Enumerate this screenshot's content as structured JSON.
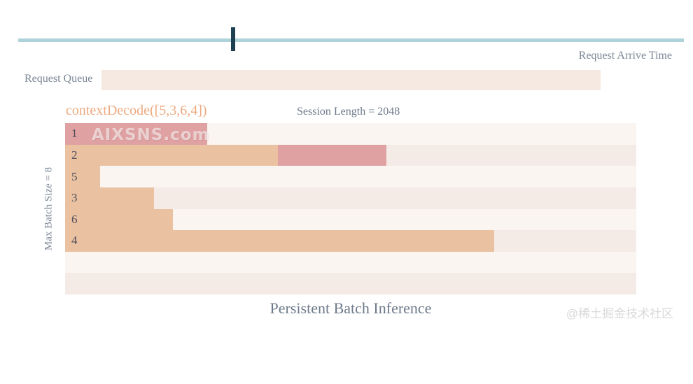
{
  "colors": {
    "tan": "#EAC2A2",
    "rose": "#DFA1A2",
    "row_even": "#FAF5F0",
    "row_odd": "#F5EBE6",
    "queue_bar": "#F5E9E1",
    "timeline": "#AED3DB",
    "tick": "#1D4150",
    "label_text": "#7B8695",
    "context_text": "#ECAA80",
    "row_label_text": "#504C59",
    "title_text": "#6E7A8A",
    "watermark_text": "#D9D9D9"
  },
  "timeline": {
    "arrive_label": "Request Arrive Time",
    "tick_position_pct": 32
  },
  "request_queue": {
    "label": "Request Queue"
  },
  "chart": {
    "context_label": "contextDecode([5,3,6,4])",
    "session_label": "Session Length = 2048",
    "y_axis_label": "Max Batch Size = 8",
    "max_batch_size": 8,
    "session_length": 2048,
    "rows": [
      {
        "label": "1",
        "segments": [
          {
            "color": "rose",
            "width_pct": 24.9
          }
        ]
      },
      {
        "label": "2",
        "segments": [
          {
            "color": "tan",
            "width_pct": 37.3
          },
          {
            "color": "rose",
            "width_pct": 19.0
          }
        ]
      },
      {
        "label": "5",
        "segments": [
          {
            "color": "tan",
            "width_pct": 6.1
          }
        ]
      },
      {
        "label": "3",
        "segments": [
          {
            "color": "tan",
            "width_pct": 15.6
          }
        ]
      },
      {
        "label": "6",
        "segments": [
          {
            "color": "tan",
            "width_pct": 18.9
          }
        ]
      },
      {
        "label": "4",
        "segments": [
          {
            "color": "tan",
            "width_pct": 75.1
          }
        ]
      },
      {
        "label": "",
        "segments": []
      },
      {
        "label": "",
        "segments": []
      }
    ]
  },
  "title": "Persistent Batch Inference",
  "watermarks": {
    "site": "AIXSNS.com",
    "community": "@稀土掘金技术社区"
  }
}
